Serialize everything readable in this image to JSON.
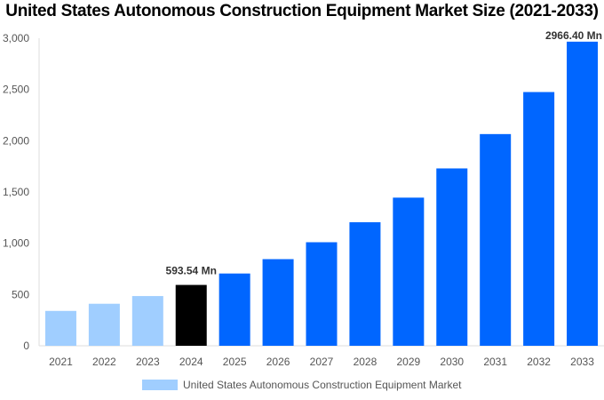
{
  "chart_data": {
    "type": "bar",
    "title": "United States Autonomous Construction Equipment Market Size (2021-2033)",
    "categories": [
      "2021",
      "2022",
      "2023",
      "2024",
      "2025",
      "2026",
      "2027",
      "2028",
      "2029",
      "2030",
      "2031",
      "2032",
      "2033"
    ],
    "series": [
      {
        "name": "United States Autonomous Construction Equipment Market",
        "values": [
          340,
          410,
          485,
          593.54,
          705,
          845,
          1010,
          1205,
          1445,
          1730,
          2065,
          2475,
          2966.4
        ]
      }
    ],
    "data_labels": {
      "3": "593.54 Mn",
      "12": "2966.40 Mn"
    },
    "ylim": [
      0,
      3000
    ],
    "yticks": [
      0,
      500,
      1000,
      1500,
      2000,
      2500,
      3000
    ],
    "ytick_labels": [
      "0",
      "500",
      "1,000",
      "1,500",
      "2,000",
      "2,500",
      "3,000"
    ],
    "grid": false,
    "legend_position": "bottom",
    "colors": {
      "historical": "#a0ceff",
      "base_year": "#000000",
      "forecast": "#0066ff"
    }
  }
}
